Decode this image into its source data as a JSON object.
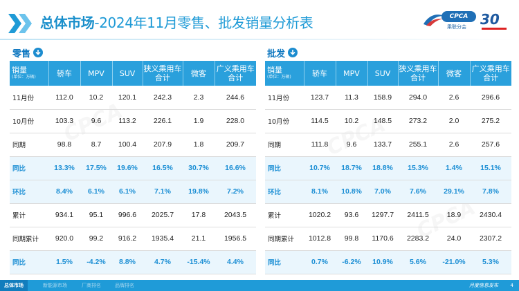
{
  "header": {
    "title_bold": "总体市场",
    "title_rest": "-2024年11月零售、批发销量分析表",
    "logo_badge": "CPCA",
    "logo_sub": "乘联分会",
    "anniv": "30"
  },
  "retail": {
    "label": "零售",
    "corner_label": "销量",
    "corner_unit": "(单位：万辆)",
    "columns": [
      "轿车",
      "MPV",
      "SUV",
      "狭义乘用车合计",
      "微客",
      "广义乘用车合计"
    ],
    "rows": [
      {
        "label": "11月份",
        "values": [
          "112.0",
          "10.2",
          "120.1",
          "242.3",
          "2.3",
          "244.6"
        ],
        "hl": false
      },
      {
        "label": "10月份",
        "values": [
          "103.3",
          "9.6",
          "113.2",
          "226.1",
          "1.9",
          "228.0"
        ],
        "hl": false
      },
      {
        "label": "同期",
        "values": [
          "98.8",
          "8.7",
          "100.4",
          "207.9",
          "1.8",
          "209.7"
        ],
        "hl": false
      },
      {
        "label": "同比",
        "values": [
          "13.3%",
          "17.5%",
          "19.6%",
          "16.5%",
          "30.7%",
          "16.6%"
        ],
        "hl": true
      },
      {
        "label": "环比",
        "values": [
          "8.4%",
          "6.1%",
          "6.1%",
          "7.1%",
          "19.8%",
          "7.2%"
        ],
        "hl": true
      },
      {
        "label": "累计",
        "values": [
          "934.1",
          "95.1",
          "996.6",
          "2025.7",
          "17.8",
          "2043.5"
        ],
        "hl": false
      },
      {
        "label": "同期累计",
        "values": [
          "920.0",
          "99.2",
          "916.2",
          "1935.4",
          "21.1",
          "1956.5"
        ],
        "hl": false
      },
      {
        "label": "同比",
        "values": [
          "1.5%",
          "-4.2%",
          "8.8%",
          "4.7%",
          "-15.4%",
          "4.4%"
        ],
        "hl": true
      }
    ]
  },
  "wholesale": {
    "label": "批发",
    "corner_label": "销量",
    "corner_unit": "(单位：万辆)",
    "columns": [
      "轿车",
      "MPV",
      "SUV",
      "狭义乘用车合计",
      "微客",
      "广义乘用车合计"
    ],
    "rows": [
      {
        "label": "11月份",
        "values": [
          "123.7",
          "11.3",
          "158.9",
          "294.0",
          "2.6",
          "296.6"
        ],
        "hl": false
      },
      {
        "label": "10月份",
        "values": [
          "114.5",
          "10.2",
          "148.5",
          "273.2",
          "2.0",
          "275.2"
        ],
        "hl": false
      },
      {
        "label": "同期",
        "values": [
          "111.8",
          "9.6",
          "133.7",
          "255.1",
          "2.6",
          "257.6"
        ],
        "hl": false
      },
      {
        "label": "同比",
        "values": [
          "10.7%",
          "18.7%",
          "18.8%",
          "15.3%",
          "1.4%",
          "15.1%"
        ],
        "hl": true
      },
      {
        "label": "环比",
        "values": [
          "8.1%",
          "10.8%",
          "7.0%",
          "7.6%",
          "29.1%",
          "7.8%"
        ],
        "hl": true
      },
      {
        "label": "累计",
        "values": [
          "1020.2",
          "93.6",
          "1297.7",
          "2411.5",
          "18.9",
          "2430.4"
        ],
        "hl": false
      },
      {
        "label": "同期累计",
        "values": [
          "1012.8",
          "99.8",
          "1170.6",
          "2283.2",
          "24.0",
          "2307.2"
        ],
        "hl": false
      },
      {
        "label": "同比",
        "values": [
          "0.7%",
          "-6.2%",
          "10.9%",
          "5.6%",
          "-21.0%",
          "5.3%"
        ],
        "hl": true
      }
    ]
  },
  "footer": {
    "tabs": [
      "总体市场",
      "新能源市场",
      "厂商排名",
      "品牌排名"
    ],
    "right_text": "月度信息发布",
    "page": "4"
  },
  "colors": {
    "accent": "#2aa0dc",
    "highlight_text": "#1b8ed4",
    "highlight_bg": "#eaf6fd"
  }
}
